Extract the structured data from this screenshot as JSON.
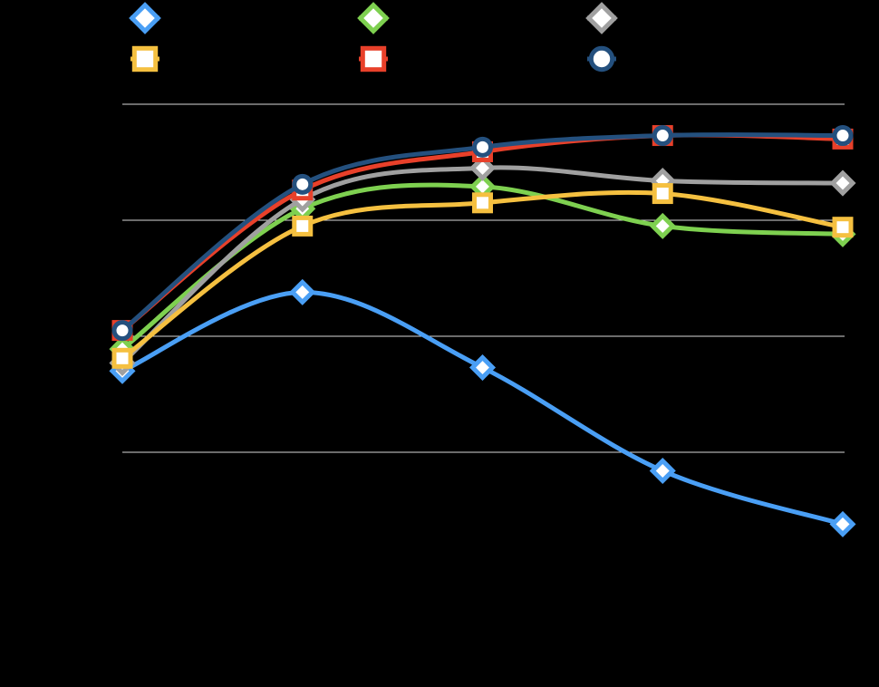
{
  "chart_data": {
    "type": "line",
    "categories": [
      null,
      null,
      null,
      null,
      null
    ],
    "ylim": [
      0,
      4
    ],
    "yticks": [
      1,
      2,
      3,
      4
    ],
    "grid": true,
    "smooth": true,
    "series": [
      {
        "color": "#4a9ff5",
        "marker": "diamond",
        "values": [
          1.7,
          2.38,
          1.73,
          0.84,
          0.38
        ]
      },
      {
        "color": "#7ed050",
        "marker": "diamond",
        "values": [
          1.89,
          3.1,
          3.29,
          2.95,
          2.88
        ]
      },
      {
        "color": "#a0a0a0",
        "marker": "diamond",
        "values": [
          1.77,
          3.18,
          3.45,
          3.34,
          3.32
        ]
      },
      {
        "color": "#f5c040",
        "marker": "square",
        "values": [
          1.81,
          2.95,
          3.15,
          3.23,
          2.94
        ]
      },
      {
        "color": "#e8402a",
        "marker": "square",
        "values": [
          2.05,
          3.26,
          3.59,
          3.73,
          3.7
        ]
      },
      {
        "color": "#24507e",
        "marker": "circle",
        "values": [
          2.05,
          3.31,
          3.63,
          3.73,
          3.73
        ]
      }
    ]
  }
}
